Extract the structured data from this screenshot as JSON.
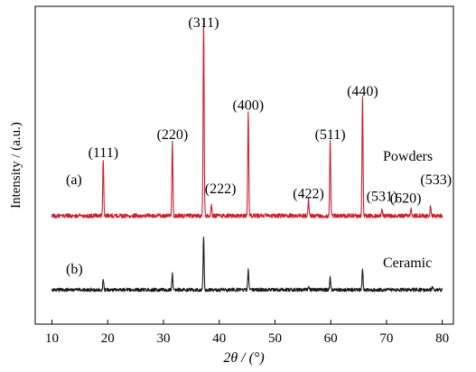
{
  "chart_data": {
    "type": "line",
    "title": "",
    "xlabel": "2θ / (°)",
    "ylabel": "Intensity / (a.u.)",
    "xlim": [
      7,
      82
    ],
    "x_ticks": [
      "10",
      "20",
      "30",
      "40",
      "50",
      "60",
      "70",
      "80"
    ],
    "y_ticks_shown": false,
    "grid": false,
    "series": [
      {
        "name": "Powders",
        "panel_label": "(a)",
        "color": "#cc1f2d",
        "baseline_percent": 14,
        "peaks": [
          {
            "x": 19.2,
            "height_percent": 29
          },
          {
            "x": 31.6,
            "height_percent": 38
          },
          {
            "x": 37.2,
            "height_percent": 100
          },
          {
            "x": 38.6,
            "height_percent": 6
          },
          {
            "x": 45.2,
            "height_percent": 53
          },
          {
            "x": 56.0,
            "height_percent": 8
          },
          {
            "x": 59.9,
            "height_percent": 38
          },
          {
            "x": 65.7,
            "height_percent": 60
          },
          {
            "x": 69.2,
            "height_percent": 3
          },
          {
            "x": 74.4,
            "height_percent": 3
          },
          {
            "x": 77.9,
            "height_percent": 5
          }
        ]
      },
      {
        "name": "Ceramic",
        "panel_label": "(b)",
        "color": "#1a1a1a",
        "baseline_percent": 0,
        "peaks": [
          {
            "x": 19.2,
            "height_percent": 5
          },
          {
            "x": 31.6,
            "height_percent": 8
          },
          {
            "x": 37.2,
            "height_percent": 27
          },
          {
            "x": 45.2,
            "height_percent": 10
          },
          {
            "x": 56.0,
            "height_percent": 2
          },
          {
            "x": 59.9,
            "height_percent": 6
          },
          {
            "x": 65.7,
            "height_percent": 11
          },
          {
            "x": 78.3,
            "height_percent": 2
          }
        ]
      }
    ],
    "annotations": [
      {
        "text": "(111)",
        "x": 19.2
      },
      {
        "text": "(220)",
        "x": 31.6
      },
      {
        "text": "(311)",
        "x": 37.2
      },
      {
        "text": "(222)",
        "x": 38.6
      },
      {
        "text": "(400)",
        "x": 45.2
      },
      {
        "text": "(422)",
        "x": 56.0
      },
      {
        "text": "(511)",
        "x": 59.9
      },
      {
        "text": "(440)",
        "x": 65.7
      },
      {
        "text": "(531)",
        "x": 69.2
      },
      {
        "text": "(620)",
        "x": 74.4
      },
      {
        "text": "(533)",
        "x": 77.9
      }
    ]
  }
}
